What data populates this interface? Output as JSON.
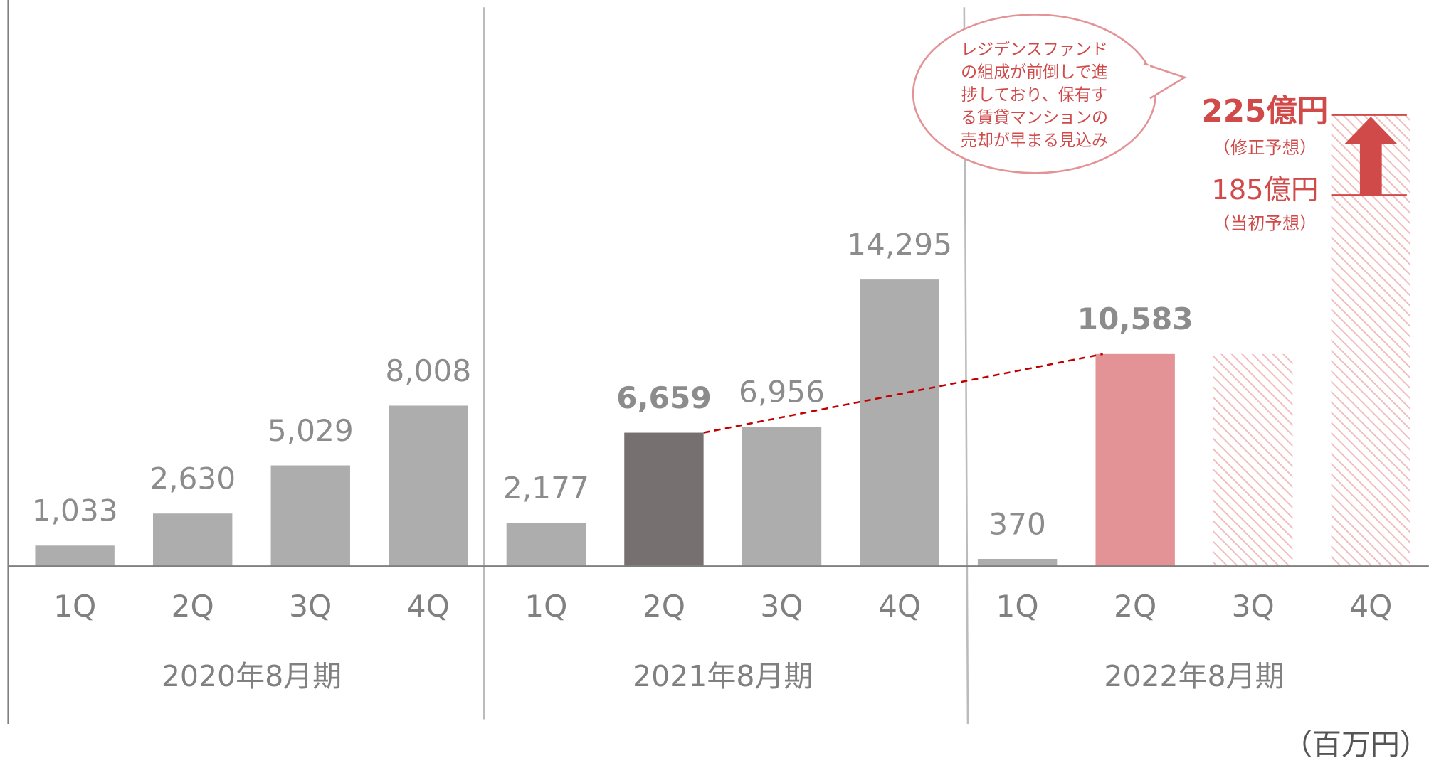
{
  "chart_data": {
    "type": "bar",
    "categories": [
      "1Q",
      "2Q",
      "3Q",
      "4Q",
      "1Q",
      "2Q",
      "3Q",
      "4Q",
      "1Q",
      "2Q",
      "3Q",
      "4Q"
    ],
    "groups": [
      "2020年8月期",
      "2021年8月期",
      "2022年8月期"
    ],
    "values": [
      1033,
      2630,
      5029,
      8008,
      2177,
      6659,
      6956,
      14295,
      370,
      10583,
      null,
      null
    ],
    "value_labels": [
      "1,033",
      "2,630",
      "5,029",
      "8,008",
      "2,177",
      "6,659",
      "6,956",
      "14,295",
      "370",
      "10,583",
      null,
      null
    ],
    "colors": [
      "#adadad",
      "#adadad",
      "#adadad",
      "#adadad",
      "#adadad",
      "#767070",
      "#adadad",
      "#adadad",
      "#adadad",
      "#e39395",
      null,
      null
    ],
    "forecast_values": [
      null,
      null,
      null,
      null,
      null,
      null,
      null,
      null,
      null,
      null,
      10583,
      22500
    ],
    "ylim": [
      0,
      28000
    ],
    "revised_forecast": {
      "value": 22500,
      "label": "225億円",
      "note": "（修正予想）"
    },
    "initial_forecast": {
      "value": 18500,
      "label": "185億円",
      "note": "（当初予想）"
    },
    "callout": [
      "レジデンスファンド",
      "の組成が前倒しで進",
      "捗しており、保有す",
      "る賃貸マンションの",
      "売却が早まる見込み"
    ],
    "unit": "（百万円）"
  }
}
